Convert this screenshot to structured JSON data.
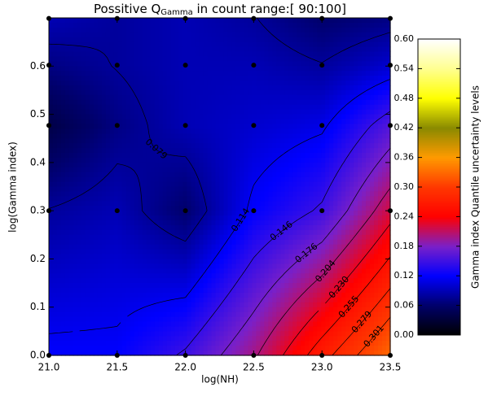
{
  "chart_data": {
    "type": "contour",
    "title": "Possitive Q",
    "title_sub": "Gamma",
    "title_suffix": " in count range:[ 90:100]",
    "xlabel": "log(NH)",
    "ylabel": "log(Gamma index)",
    "x": [
      21.0,
      21.5,
      22.0,
      22.5,
      23.0,
      23.5
    ],
    "y": [
      0,
      0.3,
      0.477,
      0.602,
      0.699
    ],
    "z": [
      [
        0.12,
        0.12,
        0.15,
        0.2,
        0.27,
        0.33
      ],
      [
        0.08,
        0.09,
        0.06,
        0.12,
        0.15,
        0.22
      ],
      [
        0.04,
        0.07,
        0.09,
        0.1,
        0.11,
        0.16
      ],
      [
        0.07,
        0.08,
        0.09,
        0.09,
        0.08,
        0.1
      ],
      [
        0.09,
        0.08,
        0.09,
        0.08,
        0.06,
        0.07
      ]
    ],
    "xlim": [
      21.0,
      23.5
    ],
    "ylim": [
      0,
      0.7
    ],
    "xticks": [
      {
        "value": 21,
        "label": "21.0"
      },
      {
        "value": 21.5,
        "label": "21.5"
      },
      {
        "value": 22,
        "label": "22.0"
      },
      {
        "value": 22.5,
        "label": "22.5"
      },
      {
        "value": 23,
        "label": "23.0"
      },
      {
        "value": 23.5,
        "label": "23.5"
      }
    ],
    "yticks": [
      {
        "value": 0,
        "label": "0.0"
      },
      0.1,
      0.2,
      0.3,
      0.4,
      0.5,
      0.6
    ],
    "levels": [
      0.079,
      0.114,
      0.146,
      0.176,
      0.204,
      0.23,
      0.255,
      0.279,
      0.301
    ],
    "level_labels": [
      "0.079",
      "0.114",
      "0.146",
      "0.176",
      "0.204",
      "0.230",
      "0.255",
      "0.279",
      "0.301"
    ],
    "colorbar": {
      "label": "Gamma index Quantile uncertainty levels",
      "lim": [
        0,
        0.6
      ],
      "ticks": [
        {
          "value": 0,
          "label": "0.00"
        },
        0.06,
        0.12,
        0.18,
        0.24,
        {
          "value": 0.3,
          "label": "0.30"
        },
        0.36,
        0.42,
        0.48,
        0.54,
        {
          "value": 0.6,
          "label": "0.60"
        }
      ]
    },
    "colormap": [
      "#000000",
      "#00006a",
      "#0000ff",
      "#7a20c8",
      "#ff0000",
      "#ff3800",
      "#ff9a00",
      "#8a8a00",
      "#ffff00",
      "#ffff90",
      "#ffffff"
    ]
  }
}
